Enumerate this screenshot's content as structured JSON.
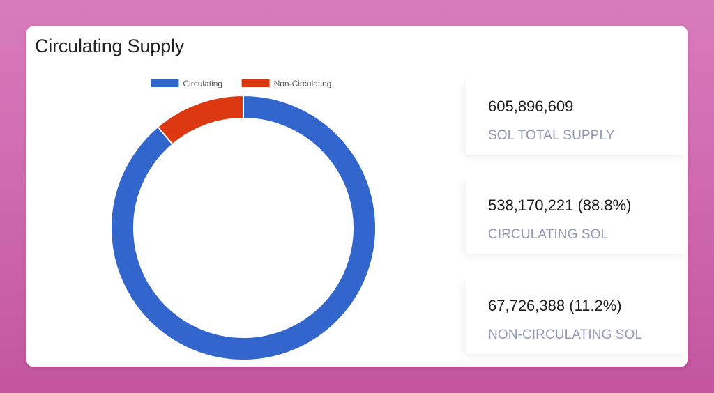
{
  "card": {
    "title": "Circulating Supply"
  },
  "chart_data": {
    "type": "pie",
    "variant": "doughnut",
    "categories": [
      "Circulating",
      "Non-Circulating"
    ],
    "values": [
      538170221,
      67726388
    ],
    "colors": [
      "#3366cc",
      "#dc3912"
    ],
    "legend": "top"
  },
  "stats": [
    {
      "value": "605,896,609",
      "label": "SOL TOTAL SUPPLY"
    },
    {
      "value": "538,170,221 (88.8%)",
      "label": "CIRCULATING SOL"
    },
    {
      "value": "67,726,388 (11.2%)",
      "label": "NON-CIRCULATING SOL"
    }
  ]
}
